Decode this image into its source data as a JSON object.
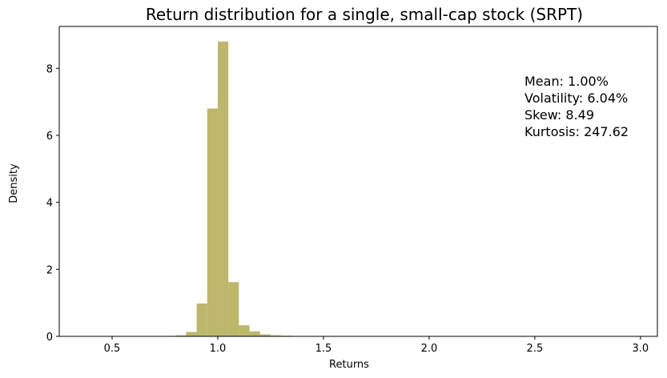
{
  "chart_data": {
    "type": "bar",
    "title": "Return distribution for a single, small-cap stock (SRPT)",
    "xlabel": "Returns",
    "ylabel": "Density",
    "xlim": [
      0.25,
      3.08
    ],
    "ylim": [
      0,
      9.25
    ],
    "xticks": [
      0.5,
      1.0,
      1.5,
      2.0,
      2.5,
      3.0
    ],
    "xtick_labels": [
      "0.5",
      "1.0",
      "1.5",
      "2.0",
      "2.5",
      "3.0"
    ],
    "yticks": [
      0,
      2,
      4,
      6,
      8
    ],
    "ytick_labels": [
      "0",
      "2",
      "4",
      "6",
      "8"
    ],
    "bar_color": "#bdb76b",
    "grid": false,
    "bins": [
      {
        "x0": 0.6,
        "x1": 0.65,
        "value": 0.01
      },
      {
        "x0": 0.65,
        "x1": 0.7,
        "value": 0.0
      },
      {
        "x0": 0.7,
        "x1": 0.75,
        "value": 0.01
      },
      {
        "x0": 0.75,
        "x1": 0.8,
        "value": 0.01
      },
      {
        "x0": 0.8,
        "x1": 0.85,
        "value": 0.03
      },
      {
        "x0": 0.85,
        "x1": 0.9,
        "value": 0.13
      },
      {
        "x0": 0.9,
        "x1": 0.95,
        "value": 0.98
      },
      {
        "x0": 0.95,
        "x1": 1.0,
        "value": 6.8
      },
      {
        "x0": 1.0,
        "x1": 1.05,
        "value": 8.8
      },
      {
        "x0": 1.05,
        "x1": 1.1,
        "value": 1.62
      },
      {
        "x0": 1.1,
        "x1": 1.15,
        "value": 0.33
      },
      {
        "x0": 1.15,
        "x1": 1.2,
        "value": 0.15
      },
      {
        "x0": 1.2,
        "x1": 1.25,
        "value": 0.06
      },
      {
        "x0": 1.25,
        "x1": 1.3,
        "value": 0.03
      },
      {
        "x0": 1.3,
        "x1": 1.35,
        "value": 0.02
      },
      {
        "x0": 1.35,
        "x1": 1.4,
        "value": 0.01
      },
      {
        "x0": 1.4,
        "x1": 1.45,
        "value": 0.01
      }
    ],
    "annotations": [
      "Mean: 1.00%",
      "Volatility: 6.04%",
      "Skew: 8.49",
      "Kurtosis: 247.62"
    ]
  }
}
